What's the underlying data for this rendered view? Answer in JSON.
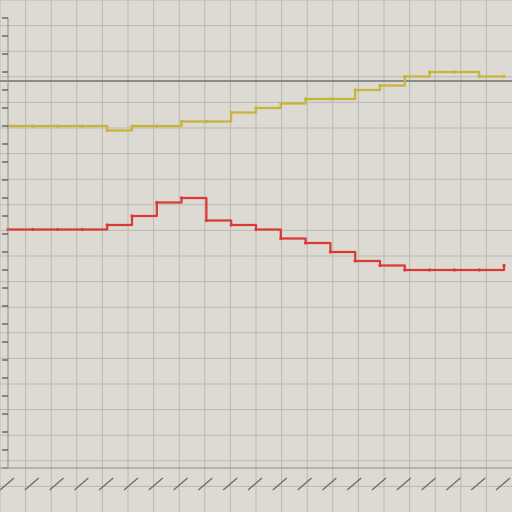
{
  "chart_data": {
    "type": "line",
    "title": "",
    "xlabel": "",
    "ylabel": "",
    "grid": true,
    "legend": "none",
    "x": [
      0,
      1,
      2,
      3,
      4,
      5,
      6,
      7,
      8,
      9,
      10,
      11,
      12,
      13,
      14,
      15,
      16,
      17,
      18,
      19,
      20
    ],
    "xlim": [
      0,
      20
    ],
    "ylim": [
      0,
      10
    ],
    "reference_lines": [
      {
        "y": 8.6,
        "color": "#6e7375"
      }
    ],
    "series": [
      {
        "color": "#c9b43a",
        "values": [
          7.6,
          7.6,
          7.6,
          7.6,
          7.5,
          7.6,
          7.6,
          7.7,
          7.7,
          7.9,
          8.0,
          8.1,
          8.2,
          8.2,
          8.4,
          8.5,
          8.7,
          8.8,
          8.8,
          8.7,
          8.7
        ]
      },
      {
        "color": "#d93a34",
        "values": [
          5.3,
          5.3,
          5.3,
          5.3,
          5.4,
          5.6,
          5.9,
          6.0,
          5.5,
          5.4,
          5.3,
          5.1,
          5.0,
          4.8,
          4.6,
          4.5,
          4.4,
          4.4,
          4.4,
          4.4,
          4.5
        ]
      }
    ]
  },
  "colors": {
    "background": "#dcdad2",
    "grid": "#b9b8b2"
  }
}
